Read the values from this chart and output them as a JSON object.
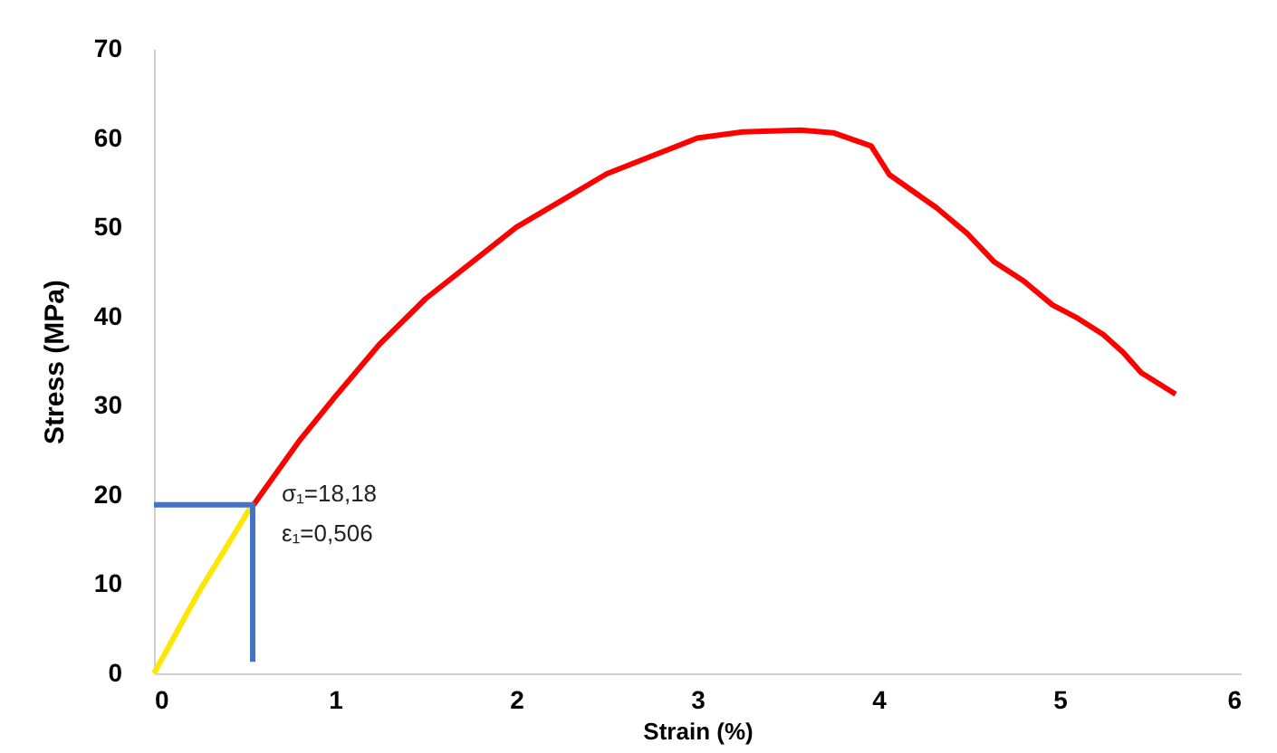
{
  "chart_data": {
    "type": "line",
    "xlabel": "Strain (%)",
    "ylabel": "Stress (MPa)",
    "xlim": [
      0,
      6
    ],
    "ylim": [
      0,
      70
    ],
    "xticks": [
      0,
      1,
      2,
      3,
      4,
      5,
      6
    ],
    "yticks": [
      0,
      10,
      20,
      30,
      40,
      50,
      60,
      70
    ],
    "grid": false,
    "legend": false,
    "marker": "none",
    "line_style": "solid",
    "series": [
      {
        "color": "#ff0000",
        "x": [
          0.55,
          0.8,
          1.0,
          1.25,
          1.5,
          1.75,
          2.0,
          2.25,
          2.5,
          2.75,
          3.0,
          3.25,
          3.57,
          3.75,
          3.96,
          4.06,
          4.32,
          4.49,
          4.64,
          4.8,
          4.96,
          5.1,
          5.24,
          5.35,
          5.45,
          5.64
        ],
        "values": [
          18.9,
          26,
          31,
          37,
          42,
          46,
          50,
          53,
          56,
          58,
          60,
          60.7,
          60.9,
          60.6,
          59.1,
          55.9,
          52.2,
          49.3,
          46.1,
          44,
          41.3,
          39.8,
          38,
          36,
          33.7,
          31.3
        ]
      },
      {
        "color": "#ffe600",
        "x": [
          0,
          0.25,
          0.53
        ],
        "values": [
          0,
          9.2,
          18.5
        ]
      },
      {
        "color": "#4472c4",
        "x": [
          0,
          0.545,
          0.545
        ],
        "values": [
          18.9,
          18.9,
          1.3
        ]
      }
    ],
    "annotations": [
      {
        "text": "σ₁=18,18",
        "x": 0.545,
        "y": 18.9
      },
      {
        "text": "ε₁=0,506",
        "x": 0.545,
        "y": 18.9
      }
    ]
  }
}
